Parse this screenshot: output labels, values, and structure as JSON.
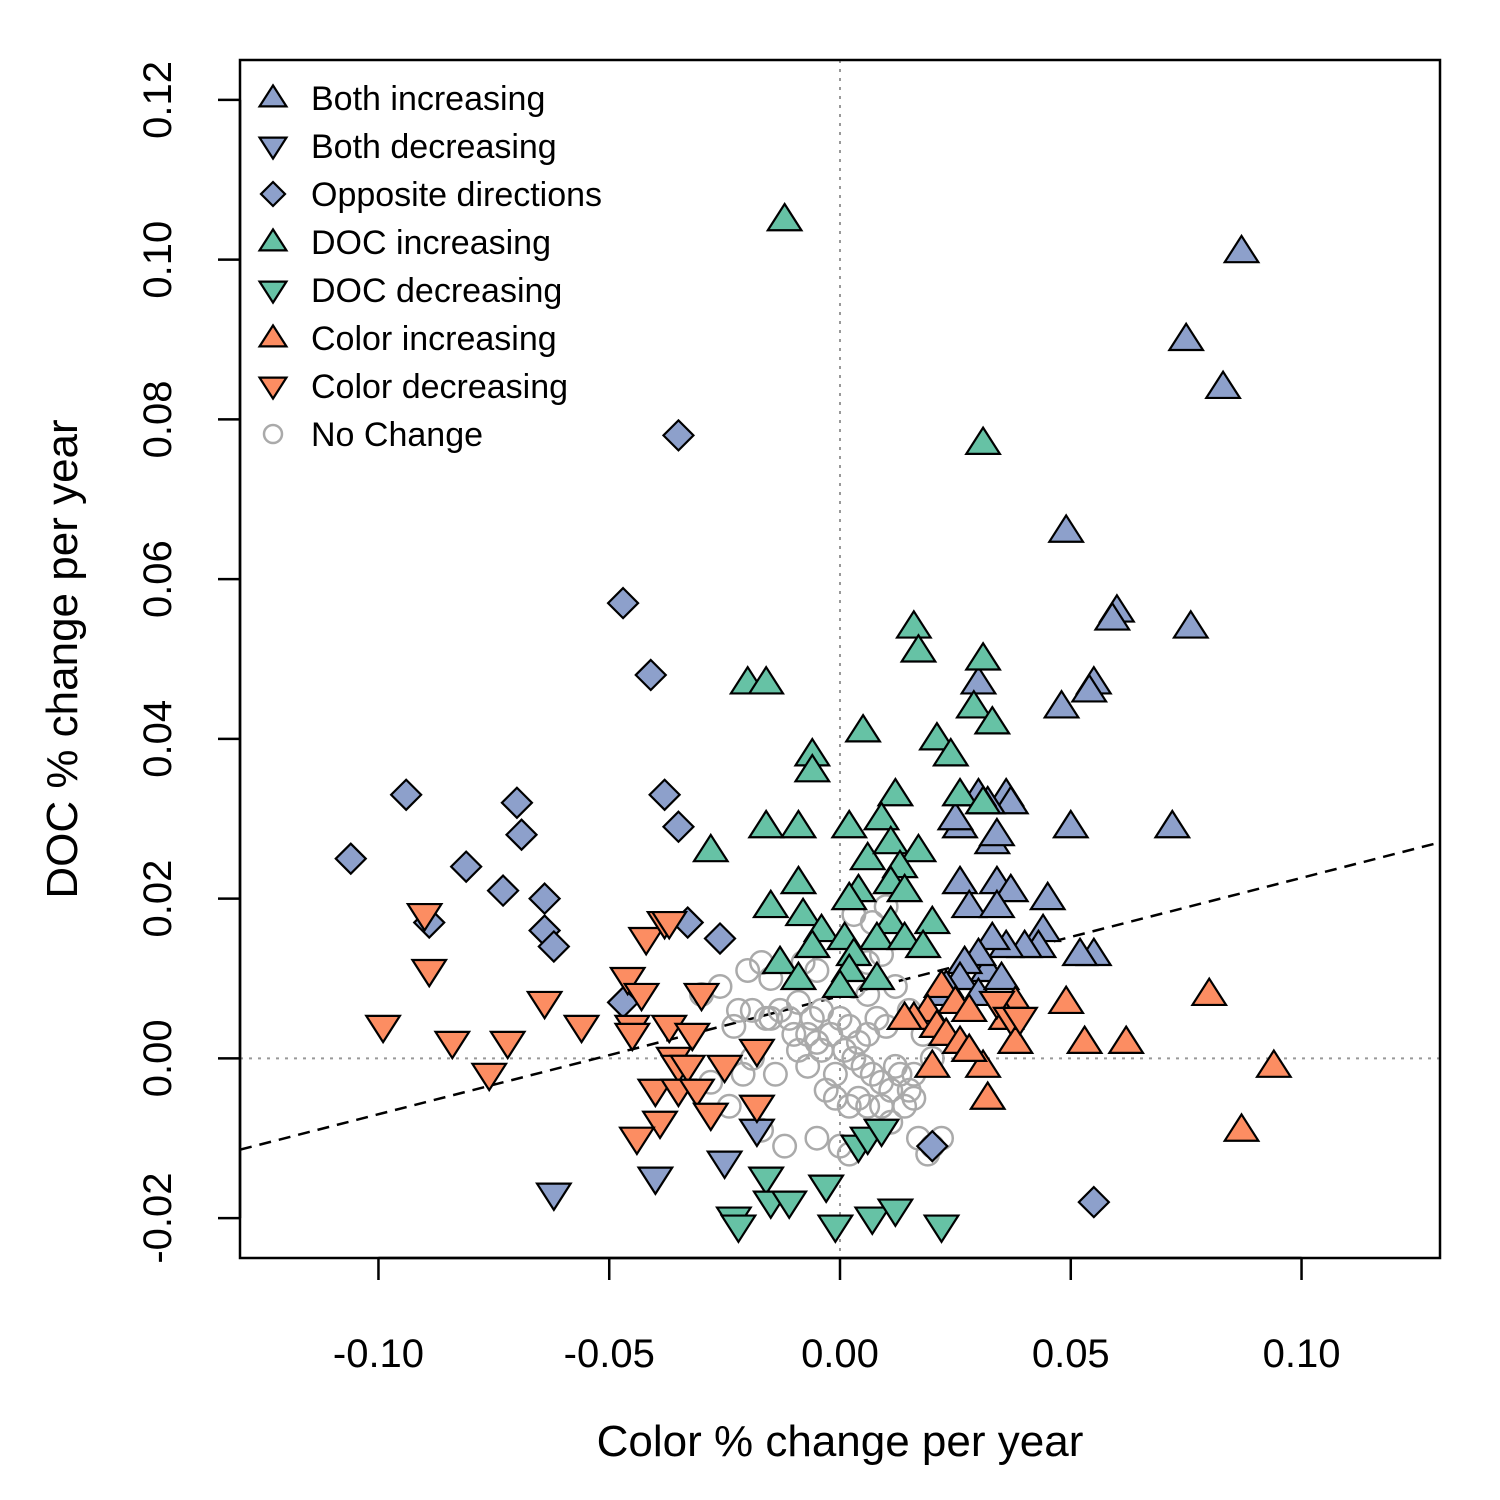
{
  "chart_data": {
    "type": "scatter",
    "xlabel": "Color % change per year",
    "ylabel": "DOC % change per year",
    "xlim": [
      -0.13,
      0.13
    ],
    "ylim": [
      -0.025,
      0.125
    ],
    "xticks": [
      "-0.10",
      "-0.05",
      "0.00",
      "0.05",
      "0.10"
    ],
    "xtick_values": [
      -0.1,
      -0.05,
      0,
      0.05,
      0.1
    ],
    "yticks": [
      "-0.02",
      "0.00",
      "0.02",
      "0.04",
      "0.06",
      "0.08",
      "0.10",
      "0.12"
    ],
    "ytick_values": [
      -0.02,
      0,
      0.02,
      0.04,
      0.06,
      0.08,
      0.1,
      0.12
    ],
    "grid": false,
    "reference_lines": {
      "x": 0,
      "y": 0,
      "style": "dotted",
      "color": "#999999"
    },
    "trend_line": {
      "intercept": 0.0078,
      "slope": 0.148,
      "style": "dashed",
      "color": "#000000"
    },
    "legend_position": "top-left",
    "colors": {
      "blue": "#8da0cb",
      "green": "#66c2a5",
      "orange": "#fc8d62",
      "gray": "#aaaaaa"
    },
    "series": [
      {
        "name": "Both increasing",
        "marker": "triangle-up",
        "color": "#8da0cb",
        "points": [
          [
            0.087,
            0.101
          ],
          [
            0.075,
            0.09
          ],
          [
            0.083,
            0.084
          ],
          [
            0.049,
            0.066
          ],
          [
            0.06,
            0.056
          ],
          [
            0.059,
            0.055
          ],
          [
            0.076,
            0.054
          ],
          [
            0.055,
            0.047
          ],
          [
            0.054,
            0.046
          ],
          [
            0.048,
            0.044
          ],
          [
            0.03,
            0.047
          ],
          [
            0.036,
            0.033
          ],
          [
            0.037,
            0.032
          ],
          [
            0.032,
            0.032
          ],
          [
            0.03,
            0.033
          ],
          [
            0.033,
            0.027
          ],
          [
            0.026,
            0.029
          ],
          [
            0.025,
            0.03
          ],
          [
            0.034,
            0.028
          ],
          [
            0.05,
            0.029
          ],
          [
            0.072,
            0.029
          ],
          [
            0.026,
            0.022
          ],
          [
            0.034,
            0.022
          ],
          [
            0.037,
            0.021
          ],
          [
            0.045,
            0.02
          ],
          [
            0.028,
            0.019
          ],
          [
            0.034,
            0.019
          ],
          [
            0.044,
            0.016
          ],
          [
            0.043,
            0.014
          ],
          [
            0.04,
            0.014
          ],
          [
            0.036,
            0.014
          ],
          [
            0.033,
            0.015
          ],
          [
            0.055,
            0.013
          ],
          [
            0.052,
            0.013
          ],
          [
            0.032,
            0.011
          ],
          [
            0.03,
            0.013
          ],
          [
            0.027,
            0.012
          ],
          [
            0.026,
            0.01
          ],
          [
            0.022,
            0.008
          ],
          [
            0.023,
            0.009
          ],
          [
            0.03,
            0.008
          ],
          [
            0.035,
            0.01
          ]
        ]
      },
      {
        "name": "Both decreasing",
        "marker": "triangle-down",
        "color": "#8da0cb",
        "points": [
          [
            -0.062,
            -0.017
          ],
          [
            -0.04,
            -0.015
          ],
          [
            -0.025,
            -0.013
          ],
          [
            -0.018,
            -0.009
          ]
        ]
      },
      {
        "name": "Opposite directions",
        "marker": "diamond",
        "color": "#8da0cb",
        "points": [
          [
            -0.035,
            0.078
          ],
          [
            -0.047,
            0.057
          ],
          [
            -0.041,
            0.048
          ],
          [
            -0.094,
            0.033
          ],
          [
            -0.07,
            0.032
          ],
          [
            -0.038,
            0.033
          ],
          [
            -0.035,
            0.029
          ],
          [
            -0.069,
            0.028
          ],
          [
            -0.106,
            0.025
          ],
          [
            -0.081,
            0.024
          ],
          [
            -0.073,
            0.021
          ],
          [
            -0.064,
            0.02
          ],
          [
            -0.089,
            0.017
          ],
          [
            -0.064,
            0.016
          ],
          [
            -0.033,
            0.017
          ],
          [
            -0.026,
            0.015
          ],
          [
            -0.062,
            0.014
          ],
          [
            -0.047,
            0.007
          ],
          [
            0.02,
            -0.011
          ],
          [
            0.055,
            -0.018
          ]
        ]
      },
      {
        "name": "DOC increasing",
        "marker": "triangle-up",
        "color": "#66c2a5",
        "points": [
          [
            -0.012,
            0.105
          ],
          [
            0.031,
            0.077
          ],
          [
            0.016,
            0.054
          ],
          [
            0.017,
            0.051
          ],
          [
            0.031,
            0.05
          ],
          [
            -0.02,
            0.047
          ],
          [
            -0.016,
            0.047
          ],
          [
            0.029,
            0.044
          ],
          [
            0.033,
            0.042
          ],
          [
            0.005,
            0.041
          ],
          [
            0.021,
            0.04
          ],
          [
            0.024,
            0.038
          ],
          [
            -0.006,
            0.038
          ],
          [
            -0.006,
            0.036
          ],
          [
            0.012,
            0.033
          ],
          [
            0.026,
            0.033
          ],
          [
            0.031,
            0.032
          ],
          [
            -0.016,
            0.029
          ],
          [
            -0.009,
            0.029
          ],
          [
            0.002,
            0.029
          ],
          [
            0.009,
            0.03
          ],
          [
            -0.028,
            0.026
          ],
          [
            0.006,
            0.025
          ],
          [
            0.011,
            0.027
          ],
          [
            0.017,
            0.026
          ],
          [
            0.013,
            0.024
          ],
          [
            -0.009,
            0.022
          ],
          [
            0.011,
            0.022
          ],
          [
            0.014,
            0.021
          ],
          [
            0.004,
            0.021
          ],
          [
            -0.015,
            0.019
          ],
          [
            0.002,
            0.02
          ],
          [
            -0.008,
            0.018
          ],
          [
            -0.004,
            0.016
          ],
          [
            0.011,
            0.017
          ],
          [
            0.02,
            0.017
          ],
          [
            0.008,
            0.015
          ],
          [
            0.014,
            0.015
          ],
          [
            0.018,
            0.014
          ],
          [
            -0.006,
            0.014
          ],
          [
            0.001,
            0.015
          ],
          [
            0.003,
            0.013
          ],
          [
            -0.013,
            0.012
          ],
          [
            0.002,
            0.011
          ],
          [
            0.008,
            0.01
          ],
          [
            -0.009,
            0.01
          ],
          [
            0.0,
            0.009
          ]
        ]
      },
      {
        "name": "DOC decreasing",
        "marker": "triangle-down",
        "color": "#66c2a5",
        "points": [
          [
            -0.016,
            -0.015
          ],
          [
            -0.015,
            -0.018
          ],
          [
            -0.011,
            -0.018
          ],
          [
            -0.023,
            -0.02
          ],
          [
            -0.022,
            -0.021
          ],
          [
            -0.003,
            -0.016
          ],
          [
            -0.001,
            -0.021
          ],
          [
            0.007,
            -0.02
          ],
          [
            0.012,
            -0.019
          ],
          [
            0.022,
            -0.021
          ],
          [
            0.004,
            -0.011
          ],
          [
            0.006,
            -0.01
          ],
          [
            0.009,
            -0.009
          ]
        ]
      },
      {
        "name": "Color increasing",
        "marker": "triangle-up",
        "color": "#fc8d62",
        "points": [
          [
            0.08,
            0.008
          ],
          [
            0.049,
            0.007
          ],
          [
            0.062,
            0.002
          ],
          [
            0.053,
            0.002
          ],
          [
            0.094,
            -0.001
          ],
          [
            0.087,
            -0.009
          ],
          [
            0.032,
            -0.005
          ],
          [
            0.02,
            -0.001
          ],
          [
            0.031,
            -0.001
          ],
          [
            0.022,
            0.009
          ],
          [
            0.025,
            0.007
          ],
          [
            0.028,
            0.006
          ],
          [
            0.019,
            0.006
          ],
          [
            0.016,
            0.005
          ],
          [
            0.014,
            0.005
          ],
          [
            0.021,
            0.004
          ],
          [
            0.023,
            0.003
          ],
          [
            0.026,
            0.002
          ],
          [
            0.028,
            0.001
          ],
          [
            0.038,
            0.007
          ],
          [
            0.038,
            0.002
          ],
          [
            0.036,
            0.005
          ]
        ]
      },
      {
        "name": "Color decreasing",
        "marker": "triangle-down",
        "color": "#fc8d62",
        "points": [
          [
            -0.09,
            0.018
          ],
          [
            -0.089,
            0.011
          ],
          [
            -0.099,
            0.004
          ],
          [
            -0.084,
            0.002
          ],
          [
            -0.072,
            0.002
          ],
          [
            -0.076,
            -0.002
          ],
          [
            -0.064,
            0.007
          ],
          [
            -0.056,
            0.004
          ],
          [
            -0.046,
            0.01
          ],
          [
            -0.043,
            0.008
          ],
          [
            -0.045,
            0.004
          ],
          [
            -0.045,
            0.003
          ],
          [
            -0.042,
            0.015
          ],
          [
            -0.038,
            0.017
          ],
          [
            -0.037,
            0.017
          ],
          [
            -0.03,
            0.008
          ],
          [
            -0.037,
            0.004
          ],
          [
            -0.032,
            0.003
          ],
          [
            -0.036,
            0.0
          ],
          [
            -0.035,
            -0.001
          ],
          [
            -0.033,
            -0.001
          ],
          [
            -0.025,
            -0.001
          ],
          [
            -0.04,
            -0.004
          ],
          [
            -0.035,
            -0.004
          ],
          [
            -0.031,
            -0.004
          ],
          [
            -0.028,
            -0.007
          ],
          [
            -0.039,
            -0.008
          ],
          [
            -0.044,
            -0.01
          ],
          [
            -0.018,
            -0.006
          ],
          [
            -0.018,
            0.001
          ],
          [
            0.034,
            0.007
          ],
          [
            0.037,
            0.005
          ],
          [
            0.039,
            0.005
          ]
        ]
      },
      {
        "name": "No Change",
        "marker": "circle-open",
        "color": "#aaaaaa",
        "points": [
          [
            -0.02,
            0.011
          ],
          [
            -0.017,
            0.012
          ],
          [
            -0.015,
            0.01
          ],
          [
            -0.03,
            0.008
          ],
          [
            -0.026,
            0.009
          ],
          [
            -0.022,
            0.006
          ],
          [
            -0.023,
            0.004
          ],
          [
            -0.019,
            0.006
          ],
          [
            -0.016,
            0.005
          ],
          [
            -0.013,
            0.006
          ],
          [
            -0.009,
            0.007
          ],
          [
            -0.006,
            0.005
          ],
          [
            -0.004,
            0.006
          ],
          [
            -0.01,
            0.003
          ],
          [
            -0.009,
            0.001
          ],
          [
            -0.005,
            0.002
          ],
          [
            -0.002,
            0.003
          ],
          [
            0.0,
            0.005
          ],
          [
            0.002,
            0.004
          ],
          [
            0.004,
            0.002
          ],
          [
            0.006,
            0.003
          ],
          [
            0.008,
            0.005
          ],
          [
            0.01,
            0.004
          ],
          [
            -0.015,
            0.005
          ],
          [
            -0.011,
            0.005
          ],
          [
            -0.007,
            0.003
          ],
          [
            -0.004,
            0.001
          ],
          [
            0.001,
            0.001
          ],
          [
            0.003,
            0.0
          ],
          [
            0.005,
            -0.001
          ],
          [
            0.007,
            -0.002
          ],
          [
            0.009,
            -0.003
          ],
          [
            0.011,
            -0.004
          ],
          [
            0.013,
            -0.002
          ],
          [
            0.015,
            -0.004
          ],
          [
            -0.003,
            -0.004
          ],
          [
            -0.001,
            -0.005
          ],
          [
            0.002,
            -0.006
          ],
          [
            0.004,
            -0.005
          ],
          [
            0.006,
            -0.006
          ],
          [
            0.009,
            -0.006
          ],
          [
            0.011,
            -0.008
          ],
          [
            0.014,
            -0.006
          ],
          [
            0.016,
            -0.005
          ],
          [
            -0.012,
            -0.011
          ],
          [
            -0.017,
            -0.009
          ],
          [
            -0.005,
            -0.01
          ],
          [
            0.0,
            -0.011
          ],
          [
            0.002,
            -0.012
          ],
          [
            0.017,
            -0.01
          ],
          [
            0.022,
            -0.01
          ],
          [
            0.019,
            -0.012
          ],
          [
            0.02,
            -0.011
          ],
          [
            -0.021,
            -0.002
          ],
          [
            -0.024,
            -0.006
          ],
          [
            -0.028,
            -0.003
          ],
          [
            0.003,
            0.018
          ],
          [
            0.007,
            0.017
          ],
          [
            0.01,
            0.019
          ],
          [
            -0.008,
            0.012
          ],
          [
            -0.005,
            0.011
          ],
          [
            0.003,
            0.009
          ],
          [
            0.006,
            0.008
          ],
          [
            0.012,
            0.009
          ],
          [
            0.015,
            0.006
          ],
          [
            0.018,
            0.003
          ],
          [
            0.02,
            0.0
          ],
          [
            0.012,
            -0.001
          ],
          [
            0.016,
            -0.002
          ],
          [
            -0.019,
            0.0
          ],
          [
            -0.014,
            -0.002
          ],
          [
            -0.007,
            -0.001
          ],
          [
            -0.001,
            -0.002
          ],
          [
            0.006,
            0.012
          ],
          [
            0.009,
            0.013
          ]
        ]
      }
    ]
  }
}
